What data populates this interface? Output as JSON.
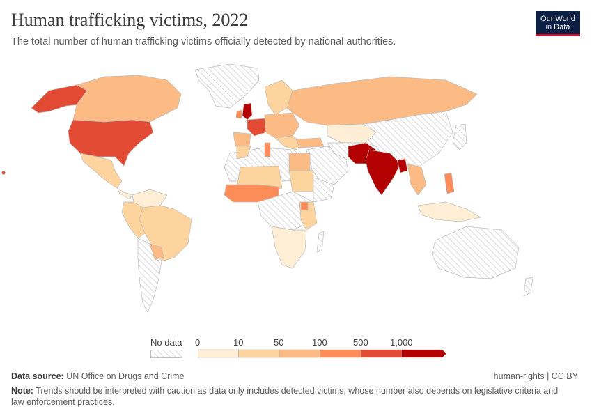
{
  "header": {
    "title": "Human trafficking victims, 2022",
    "subtitle": "The total number of human trafficking victims officially detected by national authorities."
  },
  "logo": {
    "line1": "Our World",
    "line2": "in Data"
  },
  "legend": {
    "no_data_label": "No data",
    "bins": [
      "0",
      "10",
      "50",
      "100",
      "500",
      "1,000"
    ],
    "colors": [
      "#feeed6",
      "#fdd49e",
      "#fcbb84",
      "#fc8d59",
      "#e34a33",
      "#b30000"
    ]
  },
  "footer": {
    "source_label": "Data source:",
    "source_text": "UN Office on Drugs and Crime",
    "license": "human-rights | CC BY",
    "note_label": "Note:",
    "note_text": "Trends should be interpreted with caution as data only includes detected victims, whose number also depends on legislative criteria and law enforcement practices."
  }
}
